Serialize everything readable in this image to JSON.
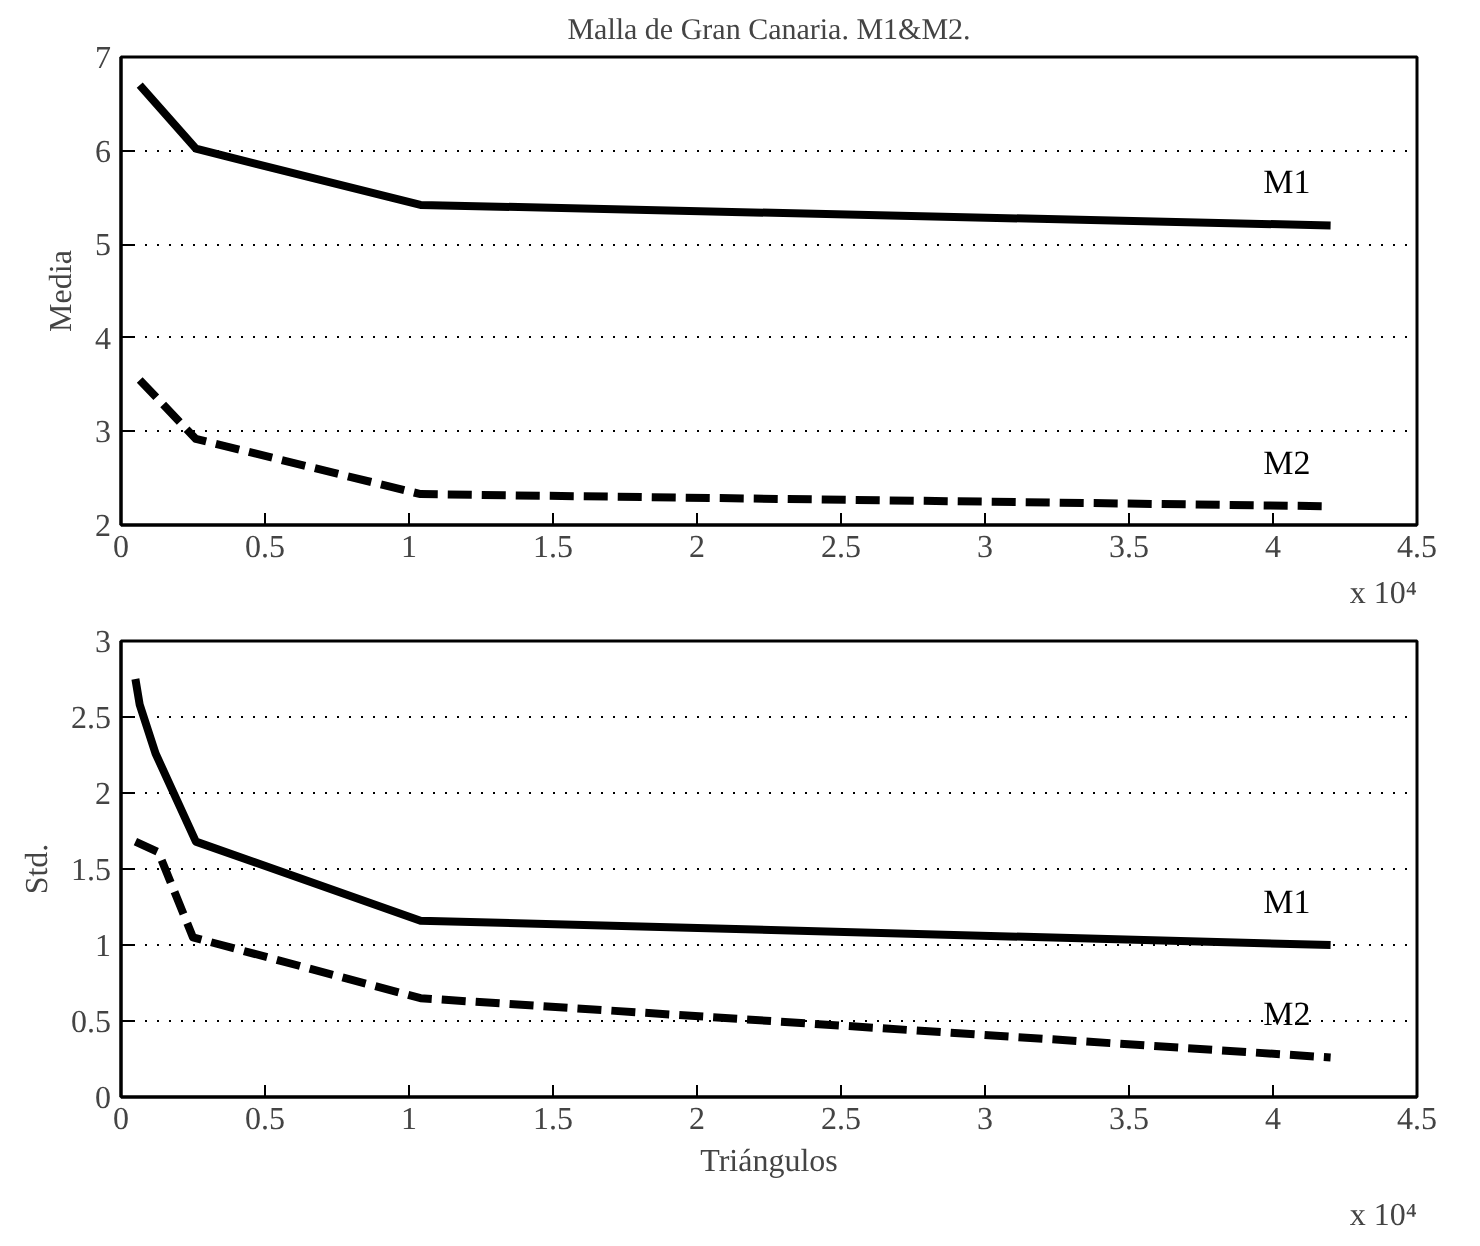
{
  "chart_data": [
    {
      "type": "line",
      "title": "Malla de Gran Canaria. M1&M2.",
      "ylabel": "Media",
      "xlim": [
        0,
        4.5
      ],
      "xticks": [
        0,
        0.5,
        1,
        1.5,
        2,
        2.5,
        3,
        3.5,
        4,
        4.5
      ],
      "ylim": [
        2,
        7
      ],
      "yticks": [
        2,
        3,
        4,
        5,
        6,
        7
      ],
      "grid": "y",
      "annotations": [
        "x 10⁴"
      ],
      "series": [
        {
          "name": "M1",
          "color": "#000000",
          "line_style": "solid",
          "x": [
            0.065,
            0.26,
            1.04,
            4.2
          ],
          "values": [
            6.7,
            6.02,
            5.42,
            5.2
          ]
        },
        {
          "name": "M2",
          "color": "#000000",
          "line_style": "dashed",
          "x": [
            0.065,
            0.26,
            1.04,
            4.2
          ],
          "values": [
            3.55,
            2.92,
            2.33,
            2.2
          ]
        }
      ]
    },
    {
      "type": "line",
      "xlabel": "Triángulos",
      "ylabel": "Std.",
      "xlim": [
        0,
        4.5
      ],
      "xticks": [
        0,
        0.5,
        1,
        1.5,
        2,
        2.5,
        3,
        3.5,
        4,
        4.5
      ],
      "ylim": [
        0,
        3
      ],
      "yticks": [
        0,
        0.5,
        1,
        1.5,
        2,
        2.5,
        3
      ],
      "grid": "y",
      "annotations": [
        "x 10⁴"
      ],
      "series": [
        {
          "name": "M1",
          "color": "#000000",
          "line_style": "solid",
          "x": [
            0.05,
            0.065,
            0.12,
            0.26,
            1.04,
            4.2
          ],
          "values": [
            2.75,
            2.58,
            2.26,
            1.68,
            1.16,
            1.0
          ]
        },
        {
          "name": "M2",
          "color": "#000000",
          "line_style": "dashed",
          "x": [
            0.05,
            0.13,
            0.25,
            1.04,
            4.2
          ],
          "values": [
            1.68,
            1.61,
            1.05,
            0.65,
            0.26
          ]
        }
      ]
    }
  ]
}
